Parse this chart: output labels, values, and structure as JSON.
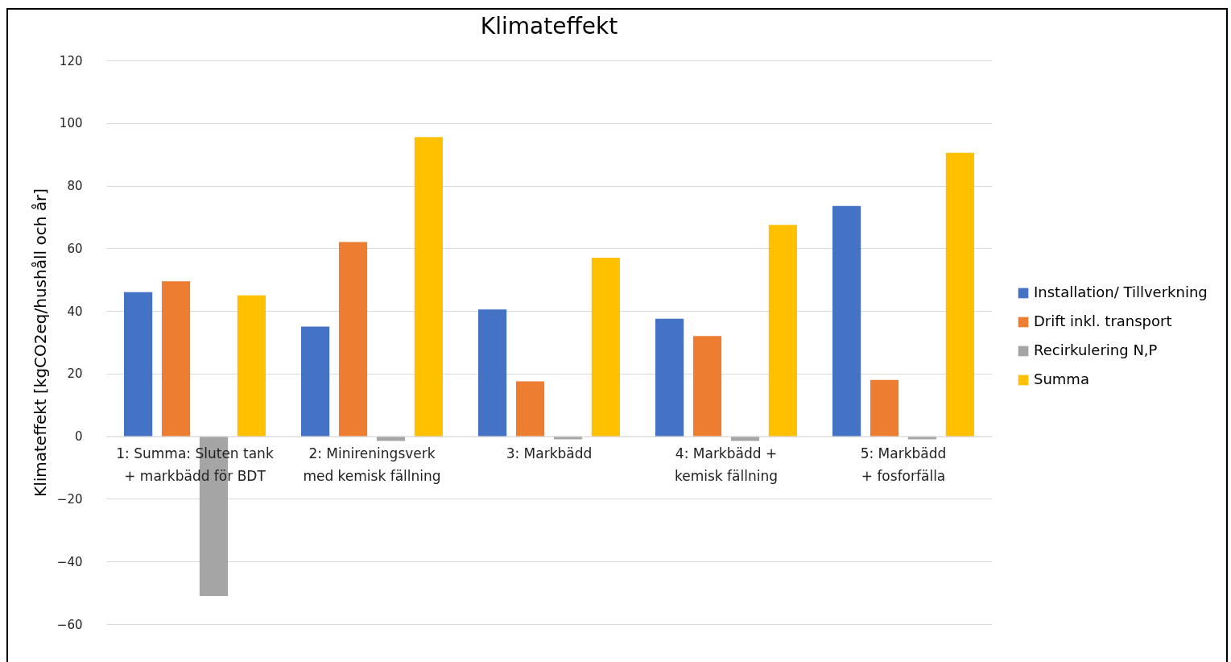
{
  "chart_data": {
    "type": "bar",
    "title": "Klimateffekt",
    "ylabel": "Klimateffekt [kgCO2eq/hushåll och år]",
    "categories": [
      "1: Summa: Sluten tank + markbädd för BDT",
      "2: Minireningsverk med kemisk fällning",
      "3: Markbädd",
      "4: Markbädd + kemisk fällning",
      "5: Markbädd + fosforfälla"
    ],
    "series": [
      {
        "name": "Installation/ Tillverkning",
        "color": "#4472c4",
        "values": [
          46,
          35,
          40.5,
          37.5,
          73.5
        ]
      },
      {
        "name": "Drift inkl. transport",
        "color": "#ed7d31",
        "values": [
          49.5,
          62,
          17.5,
          32,
          18
        ]
      },
      {
        "name": "Recirkulering N,P",
        "color": "#a5a5a5",
        "values": [
          -51,
          -1.5,
          -1,
          -1.5,
          -1
        ]
      },
      {
        "name": "Summa",
        "color": "#ffc000",
        "values": [
          45,
          95.5,
          57,
          67.5,
          90.5
        ]
      }
    ],
    "ylim": [
      -60,
      120
    ],
    "yticks": [
      -60,
      -40,
      -20,
      0,
      20,
      40,
      60,
      80,
      100,
      120
    ],
    "grid": "y",
    "legend": "right"
  }
}
